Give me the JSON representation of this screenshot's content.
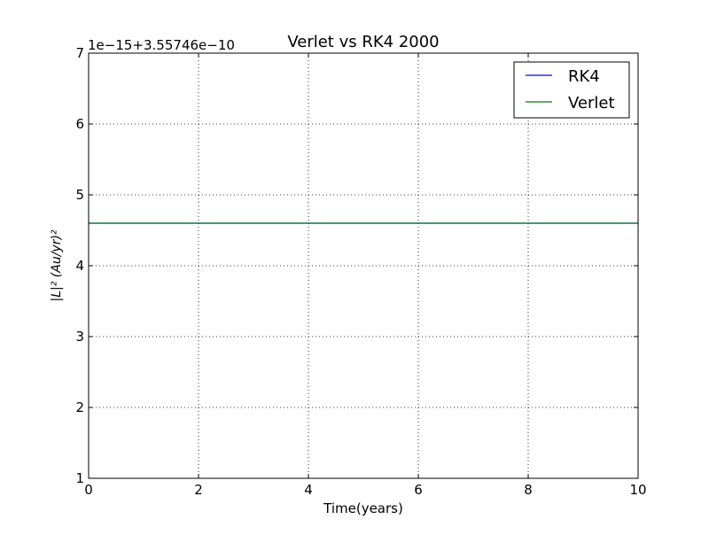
{
  "chart_data": {
    "type": "line",
    "title": "Verlet vs RK4  2000",
    "xlabel": "Time(years)",
    "ylabel": "|L|² (Au/yr)²",
    "offset_label": "1e−15+3.55746e−10",
    "xlim": [
      0,
      10
    ],
    "ylim": [
      1,
      7
    ],
    "x_ticks": [
      0,
      2,
      4,
      6,
      8,
      10
    ],
    "y_ticks": [
      1,
      2,
      3,
      4,
      5,
      6,
      7
    ],
    "grid": true,
    "legend_position": "top-right",
    "series": [
      {
        "name": "RK4",
        "color": "#0000ff",
        "x": [
          0,
          10
        ],
        "y": [
          4.6,
          4.6
        ]
      },
      {
        "name": "Verlet",
        "color": "#008000",
        "x": [
          0,
          10
        ],
        "y": [
          4.6,
          4.6
        ]
      }
    ]
  }
}
